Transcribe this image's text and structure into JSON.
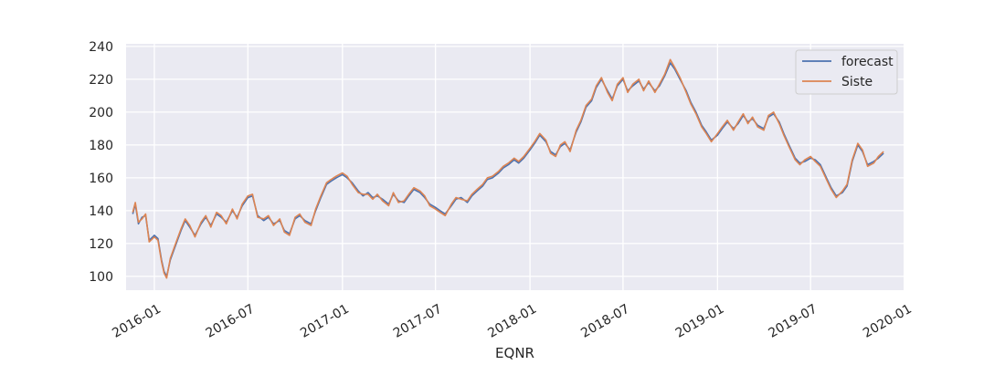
{
  "chart_data": {
    "type": "line",
    "title": "",
    "xlabel": "EQNR",
    "ylabel": "",
    "xlim": [
      "2015-11-07",
      "2019-12-29"
    ],
    "ylim": [
      91.6,
      241.6
    ],
    "grid": true,
    "legend_position": "top-right",
    "x_tick_labels": [
      "2016-01",
      "2016-07",
      "2017-01",
      "2017-07",
      "2018-01",
      "2018-07",
      "2019-01",
      "2019-07",
      "2020-01"
    ],
    "x_tick_dates": [
      "2016-01-01",
      "2016-07-01",
      "2017-01-01",
      "2017-07-01",
      "2018-01-01",
      "2018-07-01",
      "2019-01-01",
      "2019-07-01",
      "2020-01-01"
    ],
    "y_ticks": [
      100,
      120,
      140,
      160,
      180,
      200,
      220,
      240
    ],
    "x": [
      "2015-11-20",
      "2015-11-25",
      "2015-12-01",
      "2015-12-08",
      "2015-12-15",
      "2015-12-22",
      "2016-01-01",
      "2016-01-08",
      "2016-01-15",
      "2016-01-20",
      "2016-01-25",
      "2016-02-01",
      "2016-02-08",
      "2016-02-15",
      "2016-02-22",
      "2016-03-01",
      "2016-03-10",
      "2016-03-20",
      "2016-04-01",
      "2016-04-10",
      "2016-04-20",
      "2016-05-01",
      "2016-05-10",
      "2016-05-20",
      "2016-06-01",
      "2016-06-10",
      "2016-06-20",
      "2016-07-01",
      "2016-07-10",
      "2016-07-20",
      "2016-08-01",
      "2016-08-10",
      "2016-08-20",
      "2016-09-01",
      "2016-09-10",
      "2016-09-20",
      "2016-10-01",
      "2016-10-10",
      "2016-10-20",
      "2016-11-01",
      "2016-11-10",
      "2016-11-20",
      "2016-12-01",
      "2016-12-10",
      "2016-12-20",
      "2017-01-01",
      "2017-01-10",
      "2017-01-20",
      "2017-02-01",
      "2017-02-10",
      "2017-02-20",
      "2017-03-01",
      "2017-03-10",
      "2017-03-20",
      "2017-04-01",
      "2017-04-10",
      "2017-04-20",
      "2017-05-01",
      "2017-05-10",
      "2017-05-20",
      "2017-06-01",
      "2017-06-10",
      "2017-06-20",
      "2017-07-01",
      "2017-07-10",
      "2017-07-20",
      "2017-08-01",
      "2017-08-10",
      "2017-08-20",
      "2017-09-01",
      "2017-09-10",
      "2017-09-20",
      "2017-10-01",
      "2017-10-10",
      "2017-10-20",
      "2017-11-01",
      "2017-11-10",
      "2017-11-20",
      "2017-12-01",
      "2017-12-10",
      "2017-12-20",
      "2018-01-01",
      "2018-01-10",
      "2018-01-20",
      "2018-02-01",
      "2018-02-10",
      "2018-02-20",
      "2018-03-01",
      "2018-03-10",
      "2018-03-20",
      "2018-04-01",
      "2018-04-10",
      "2018-04-20",
      "2018-05-01",
      "2018-05-10",
      "2018-05-20",
      "2018-06-01",
      "2018-06-10",
      "2018-06-20",
      "2018-07-01",
      "2018-07-10",
      "2018-07-20",
      "2018-08-01",
      "2018-08-10",
      "2018-08-20",
      "2018-09-01",
      "2018-09-10",
      "2018-09-20",
      "2018-10-01",
      "2018-10-10",
      "2018-10-20",
      "2018-11-01",
      "2018-11-10",
      "2018-11-20",
      "2018-12-01",
      "2018-12-10",
      "2018-12-20",
      "2019-01-01",
      "2019-01-10",
      "2019-01-20",
      "2019-02-01",
      "2019-02-10",
      "2019-02-20",
      "2019-03-01",
      "2019-03-10",
      "2019-03-20",
      "2019-04-01",
      "2019-04-10",
      "2019-04-20",
      "2019-05-01",
      "2019-05-10",
      "2019-05-20",
      "2019-06-01",
      "2019-06-10",
      "2019-06-20",
      "2019-07-01",
      "2019-07-10",
      "2019-07-20",
      "2019-08-01",
      "2019-08-10",
      "2019-08-20",
      "2019-09-01",
      "2019-09-10",
      "2019-09-20",
      "2019-10-01",
      "2019-10-10",
      "2019-10-20",
      "2019-11-01",
      "2019-11-10",
      "2019-11-20"
    ],
    "series": [
      {
        "name": "forecast",
        "color": "#4c72b0",
        "values": [
          138,
          144,
          132,
          136,
          137,
          122,
          125,
          123,
          110,
          103,
          100,
          110,
          116,
          122,
          128,
          134,
          130,
          125,
          132,
          136,
          131,
          138,
          136,
          133,
          140,
          136,
          143,
          148,
          149,
          137,
          134,
          136,
          132,
          134,
          128,
          126,
          135,
          137,
          134,
          132,
          140,
          148,
          156,
          158,
          160,
          162,
          160,
          157,
          152,
          149,
          151,
          148,
          149,
          147,
          144,
          150,
          146,
          145,
          149,
          153,
          151,
          148,
          144,
          142,
          140,
          138,
          143,
          147,
          148,
          145,
          149,
          152,
          155,
          159,
          160,
          163,
          166,
          168,
          171,
          169,
          172,
          177,
          181,
          186,
          182,
          176,
          174,
          179,
          181,
          177,
          188,
          194,
          203,
          207,
          215,
          220,
          213,
          208,
          216,
          220,
          213,
          216,
          219,
          214,
          218,
          213,
          216,
          222,
          230,
          226,
          220,
          213,
          206,
          200,
          192,
          188,
          183,
          186,
          190,
          194,
          190,
          193,
          198,
          194,
          196,
          192,
          190,
          197,
          199,
          194,
          187,
          180,
          172,
          169,
          170,
          172,
          171,
          168,
          160,
          154,
          149,
          151,
          155,
          170,
          180,
          176,
          168,
          170,
          172,
          175
        ]
      },
      {
        "name": "Siste",
        "color": "#dd8452",
        "values": [
          139,
          145,
          133,
          135,
          138,
          121,
          124,
          122,
          109,
          102,
          99,
          111,
          117,
          123,
          129,
          135,
          131,
          124,
          133,
          137,
          130,
          139,
          137,
          132,
          141,
          135,
          144,
          149,
          150,
          136,
          135,
          137,
          131,
          135,
          127,
          125,
          136,
          138,
          133,
          131,
          141,
          149,
          157,
          159,
          161,
          163,
          161,
          156,
          151,
          150,
          150,
          147,
          150,
          146,
          143,
          151,
          145,
          146,
          150,
          154,
          152,
          149,
          143,
          141,
          139,
          137,
          144,
          148,
          147,
          146,
          150,
          153,
          156,
          160,
          161,
          164,
          167,
          169,
          172,
          170,
          173,
          178,
          182,
          187,
          183,
          175,
          173,
          180,
          182,
          176,
          189,
          195,
          204,
          208,
          216,
          221,
          212,
          207,
          217,
          221,
          212,
          217,
          220,
          213,
          219,
          212,
          217,
          223,
          232,
          227,
          221,
          212,
          205,
          199,
          191,
          187,
          182,
          187,
          191,
          195,
          189,
          194,
          199,
          193,
          197,
          191,
          189,
          198,
          200,
          193,
          186,
          179,
          171,
          168,
          171,
          173,
          170,
          167,
          159,
          153,
          148,
          152,
          156,
          171,
          181,
          177,
          167,
          169,
          173,
          176
        ]
      }
    ]
  }
}
